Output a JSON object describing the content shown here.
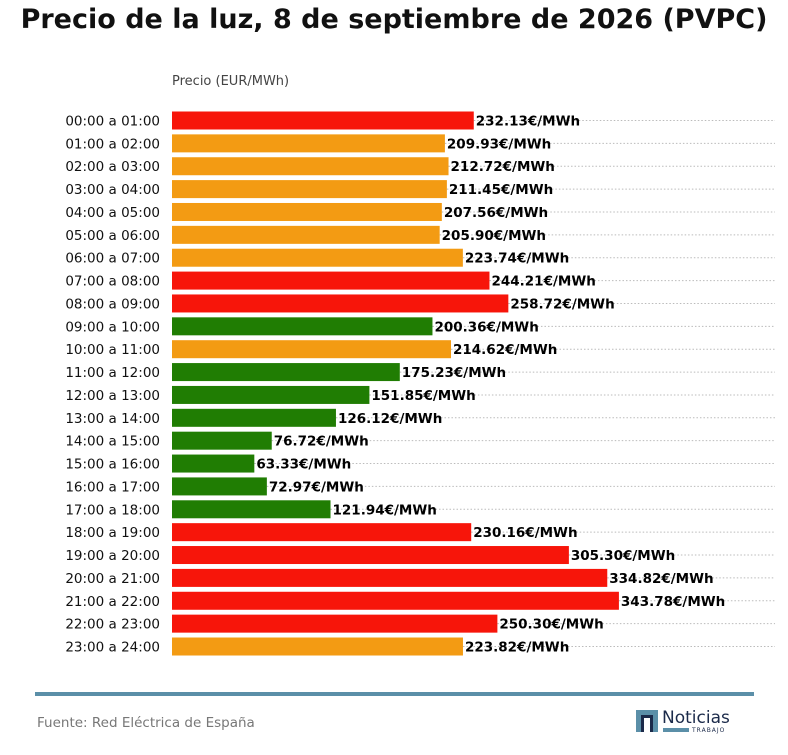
{
  "title": "Precio de la luz, 8 de septiembre de 2026 (PVPC)",
  "source": "Fuente: Red Eléctrica de España",
  "logo": {
    "name": "Noticias",
    "sub": "TRABAJO"
  },
  "colors": {
    "high": "#f7150a",
    "mid": "#f39b13",
    "low": "#207d03",
    "rule": "#5b8fa8"
  },
  "chart_data": {
    "type": "bar",
    "orientation": "horizontal",
    "title": "Precio de la luz, 8 de septiembre de 2026 (PVPC)",
    "xlabel": "Precio (EUR/MWh)",
    "value_suffix": "€/MWh",
    "grid": "dotted horizontal lines per bar",
    "categories": [
      "00:00 a 01:00",
      "01:00 a 02:00",
      "02:00 a 03:00",
      "03:00 a 04:00",
      "04:00 a 05:00",
      "05:00 a 06:00",
      "06:00 a 07:00",
      "07:00 a 08:00",
      "08:00 a 09:00",
      "09:00 a 10:00",
      "10:00 a 11:00",
      "11:00 a 12:00",
      "12:00 a 13:00",
      "13:00 a 14:00",
      "14:00 a 15:00",
      "15:00 a 16:00",
      "16:00 a 17:00",
      "17:00 a 18:00",
      "18:00 a 19:00",
      "19:00 a 20:00",
      "20:00 a 21:00",
      "21:00 a 22:00",
      "22:00 a 23:00",
      "23:00 a 24:00"
    ],
    "values": [
      232.13,
      209.93,
      212.72,
      211.45,
      207.56,
      205.9,
      223.74,
      244.21,
      258.72,
      200.36,
      214.62,
      175.23,
      151.85,
      126.12,
      76.72,
      63.33,
      72.97,
      121.94,
      230.16,
      305.3,
      334.82,
      343.78,
      250.3,
      223.82
    ],
    "levels": [
      "high",
      "mid",
      "mid",
      "mid",
      "mid",
      "mid",
      "mid",
      "high",
      "high",
      "low",
      "mid",
      "low",
      "low",
      "low",
      "low",
      "low",
      "low",
      "low",
      "high",
      "high",
      "high",
      "high",
      "high",
      "mid"
    ],
    "xlim": [
      0,
      350
    ]
  }
}
